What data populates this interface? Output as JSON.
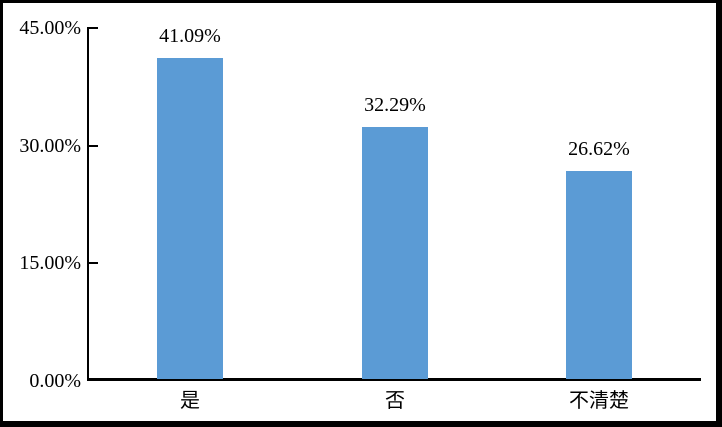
{
  "chart_data": {
    "type": "bar",
    "title": "",
    "xlabel": "",
    "ylabel": "",
    "categories": [
      "是",
      "否",
      "不清楚"
    ],
    "values": [
      41.09,
      32.29,
      26.62
    ],
    "data_labels": [
      "41.09%",
      "32.29%",
      "26.62%"
    ],
    "y_ticks": [
      {
        "label": "45.00%",
        "value": 45
      },
      {
        "label": "30.00%",
        "value": 30
      },
      {
        "label": "15.00%",
        "value": 15
      },
      {
        "label": "0.00%",
        "value": 0
      }
    ],
    "ylim": [
      0,
      45
    ],
    "grid": false,
    "legend": false,
    "bar_color": "#5B9BD5",
    "axis_color": "#000000",
    "frame_color": "#000000",
    "background_color": "#ffffff"
  }
}
